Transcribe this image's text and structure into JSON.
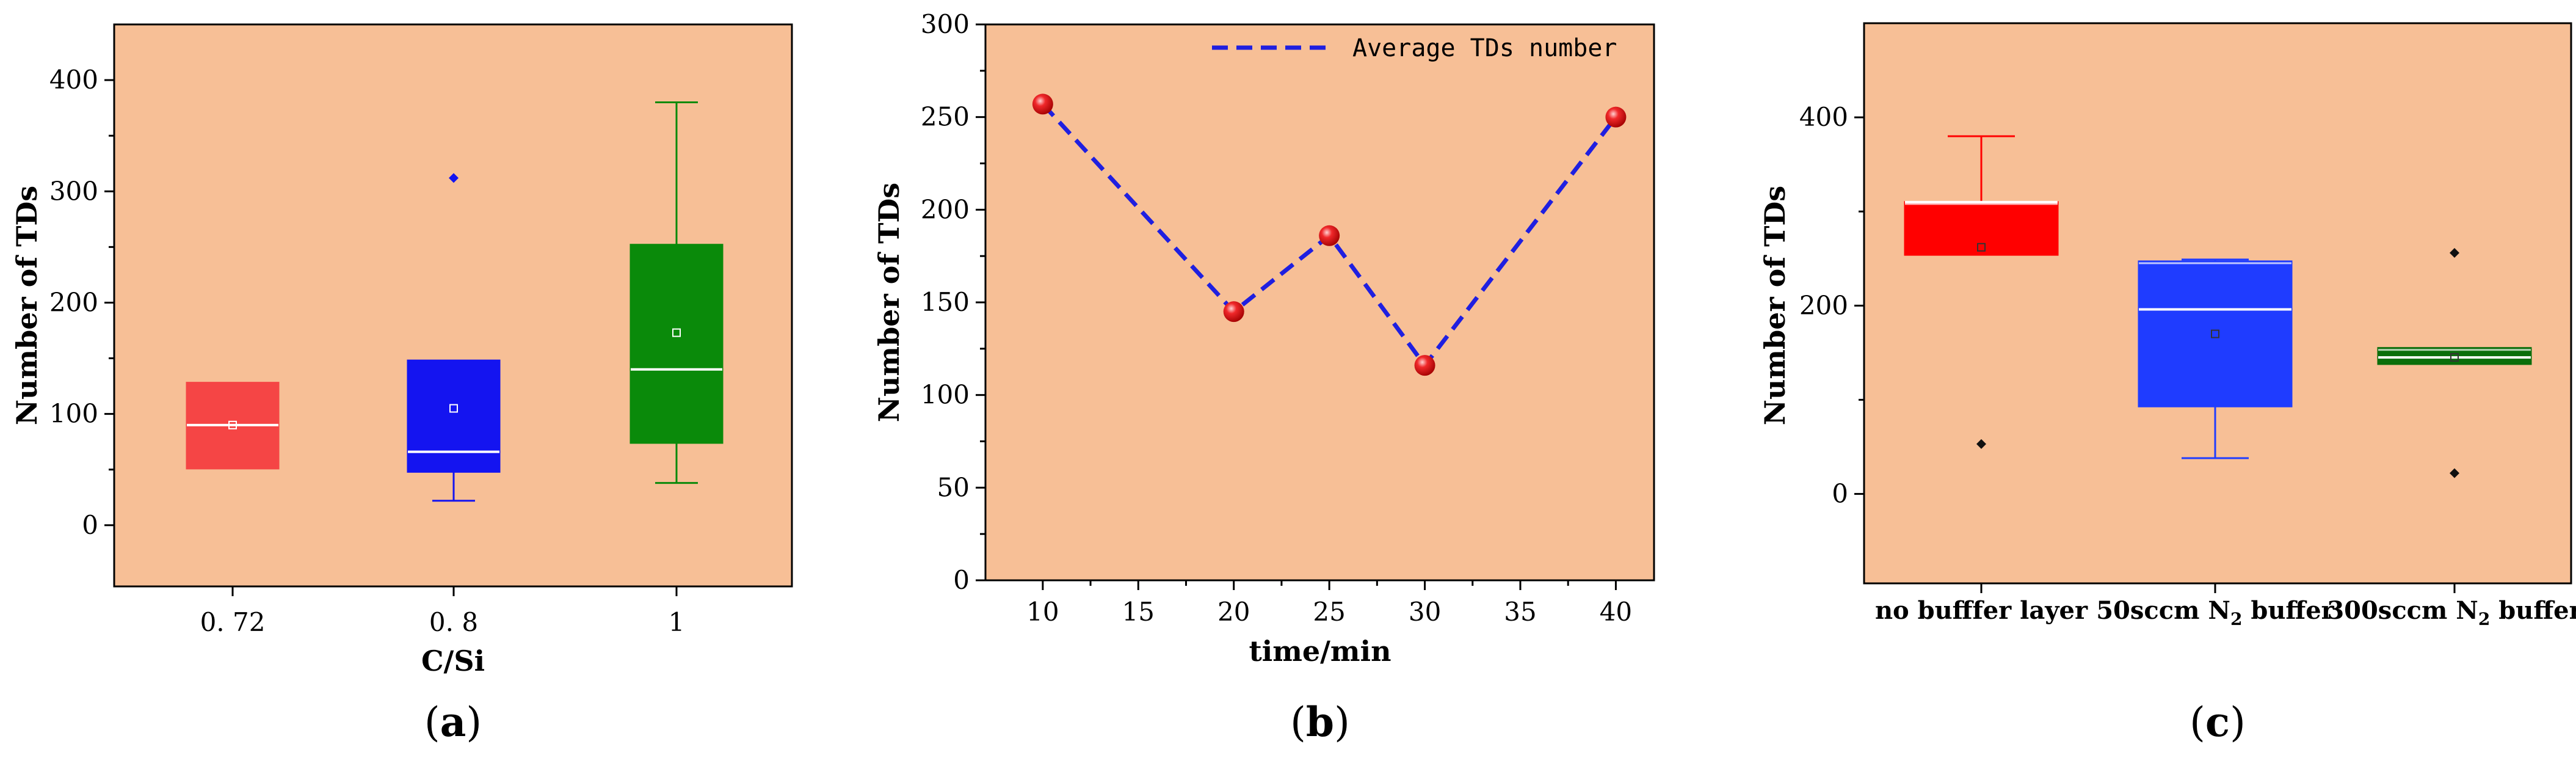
{
  "chart_data": [
    {
      "panel": "a",
      "type": "box",
      "xlabel": "C/Si",
      "ylabel": "Number of TDs",
      "ylim": [
        -55,
        450
      ],
      "yticks": [
        0,
        100,
        200,
        300,
        400
      ],
      "categories": [
        "0. 72",
        "0. 8",
        "1"
      ],
      "boxes": [
        {
          "category": "0. 72",
          "color": "#f54545",
          "q1": 51,
          "median": 90,
          "q3": 128,
          "mean": 90,
          "whisker_low": 51,
          "whisker_high": 128,
          "outliers": []
        },
        {
          "category": "0. 8",
          "color": "#1414f0",
          "q1": 48,
          "median": 66,
          "q3": 148,
          "mean": 105,
          "whisker_low": 22,
          "whisker_high": 148,
          "outliers": [
            312
          ]
        },
        {
          "category": "1",
          "color": "#0a8a0a",
          "q1": 74,
          "median": 140,
          "q3": 252,
          "mean": 173,
          "whisker_low": 38,
          "whisker_high": 380,
          "outliers": []
        }
      ],
      "panel_label": {
        "open": "(",
        "letter": "a",
        "close": ")"
      }
    },
    {
      "panel": "b",
      "type": "line",
      "xlabel": "time/min",
      "ylabel": "Number of TDs",
      "xlim": [
        7,
        42
      ],
      "ylim": [
        0,
        300
      ],
      "xticks": [
        10,
        15,
        20,
        25,
        30,
        35,
        40
      ],
      "yticks": [
        0,
        50,
        100,
        150,
        200,
        250,
        300
      ],
      "series": [
        {
          "name": "Average TDs number",
          "x": [
            10,
            20,
            25,
            30,
            40
          ],
          "y": [
            257,
            145,
            186,
            116,
            250
          ],
          "color": "#1f1fe0",
          "marker_color": "#e8161a"
        }
      ],
      "legend": "top-right",
      "panel_label": {
        "open": "(",
        "letter": "b",
        "close": ")"
      }
    },
    {
      "panel": "c",
      "type": "box",
      "ylabel": "Number of TDs",
      "ylim": [
        -95,
        500
      ],
      "yticks": [
        0,
        200,
        400
      ],
      "categories": [
        {
          "pre": "no bufffer layer",
          "sub": "",
          "post": ""
        },
        {
          "pre": "50sccm N",
          "sub": "2",
          "post": " buffer"
        },
        {
          "pre": "300sccm N",
          "sub": "2",
          "post": " buffer"
        }
      ],
      "boxes": [
        {
          "color": "#ff0000",
          "q1": 254,
          "median": 310,
          "q3": 310,
          "mean": 262,
          "whisker_low": 254,
          "whisker_high": 380,
          "outliers": [
            53
          ]
        },
        {
          "color": "#1f3cff",
          "q1": 93,
          "median": 196,
          "q3": 247,
          "mean": 170,
          "whisker_low": 38,
          "whisker_high": 249,
          "outliers": []
        },
        {
          "color": "#0b6e0b",
          "q1": 138,
          "median": 145,
          "q3": 155,
          "mean": 145,
          "whisker_low": 138,
          "whisker_high": 155,
          "outliers": [
            256,
            22
          ]
        }
      ],
      "panel_label": {
        "open": "(",
        "letter": "c",
        "close": ")"
      }
    }
  ]
}
